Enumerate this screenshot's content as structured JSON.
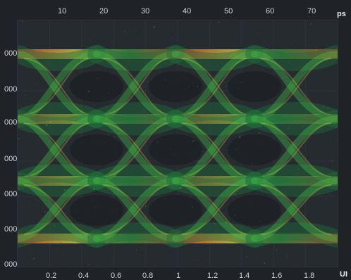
{
  "display": {
    "top_axis": {
      "unit": "ps",
      "ticks": [
        "10",
        "20",
        "30",
        "40",
        "50",
        "60",
        "70"
      ]
    },
    "bottom_axis": {
      "unit": "UI",
      "ticks": [
        "0.2",
        "0.4",
        "0.6",
        "0.8",
        "1",
        "1.2",
        "1.4",
        "1.6",
        "1.8"
      ]
    },
    "left_axis_visible_labels": [
      "000",
      "000",
      "000",
      "000",
      "000",
      "000",
      "000"
    ],
    "colors": {
      "background": "#1f2327",
      "plot_bg": "#262b30",
      "grid": "#3a4045",
      "density_low": "#1f6a3a",
      "density_mid": "#49c84a",
      "density_high": "#f2e64d",
      "density_peak": "#ff5a2b"
    }
  }
}
